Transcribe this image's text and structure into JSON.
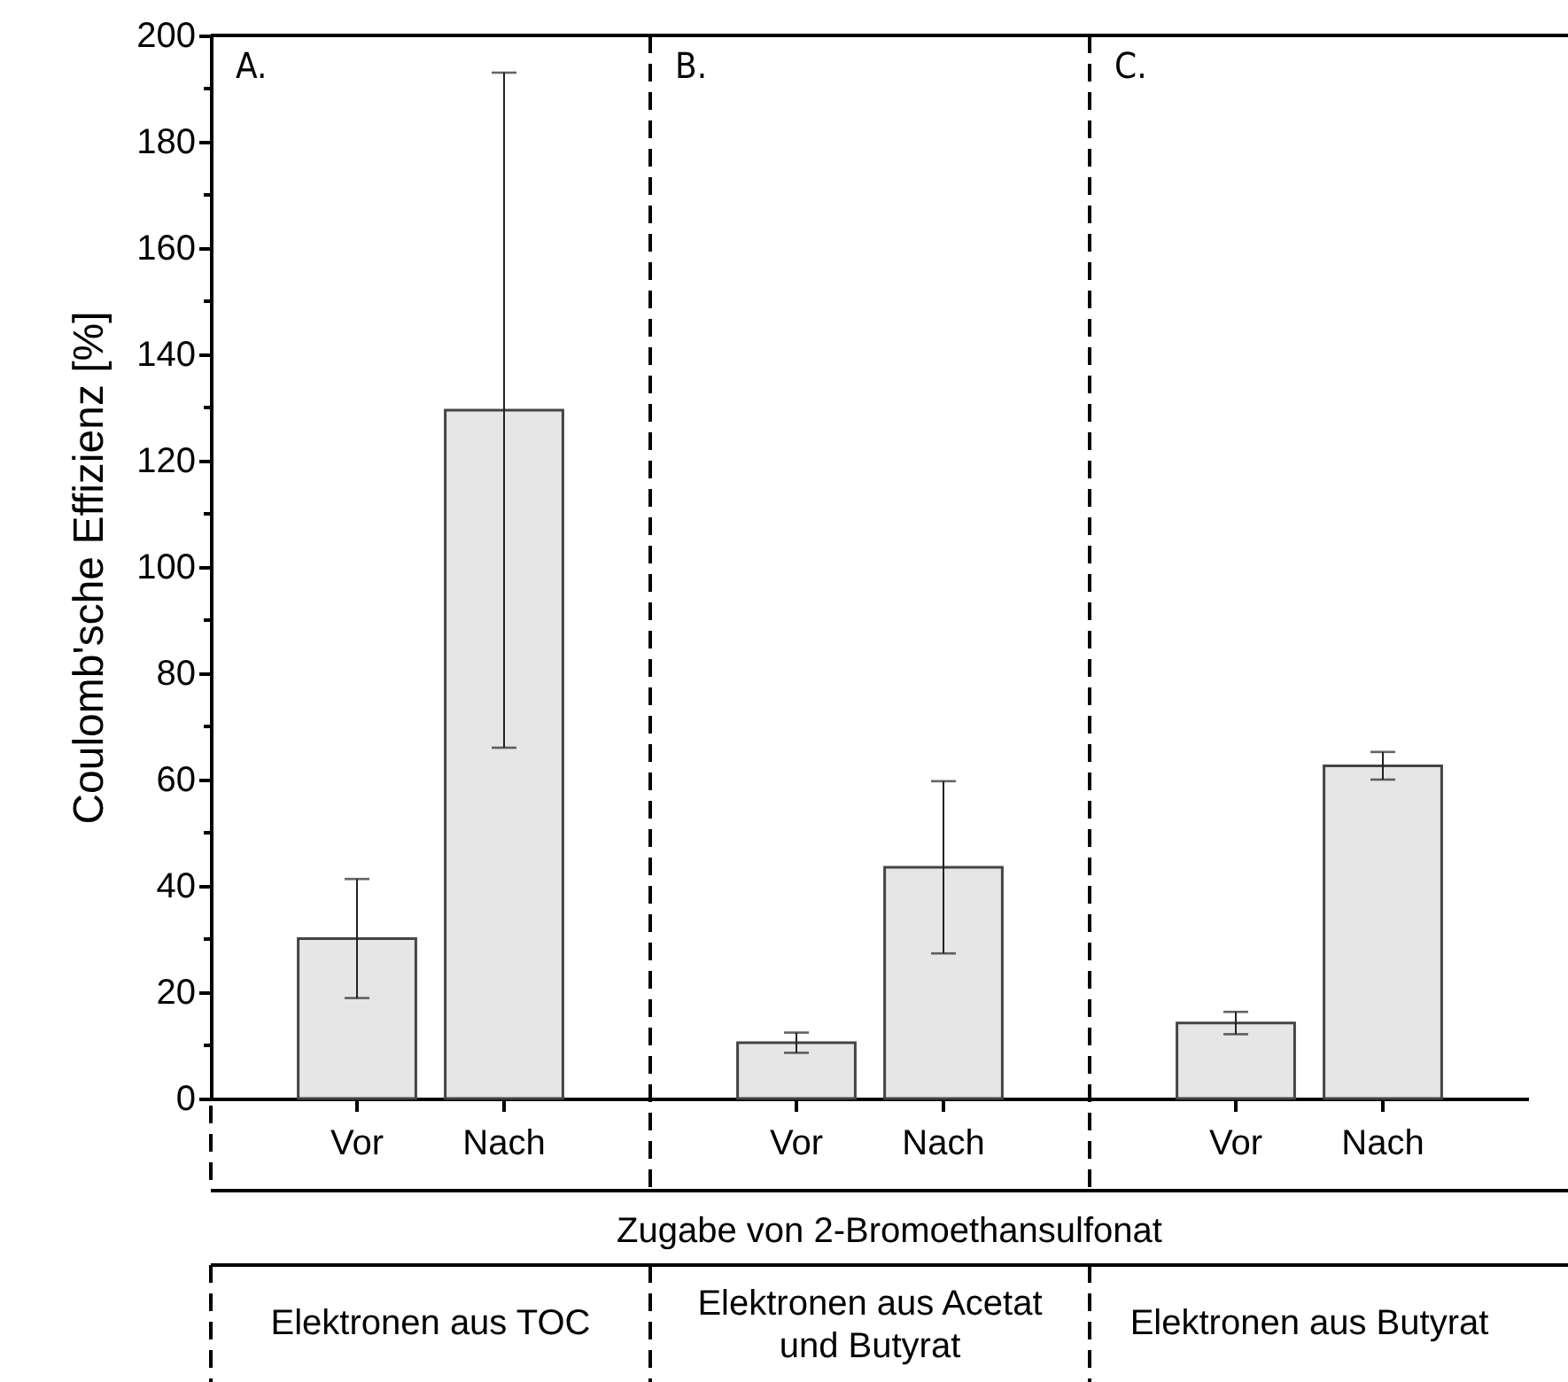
{
  "chart_data": [
    {
      "type": "bar",
      "categories": [
        "Vor",
        "Nach"
      ],
      "values": [
        30.1,
        129.5
      ],
      "errors": [
        11.2,
        63.5
      ],
      "color": "#e6e6e6",
      "ylabel": "Coulomb'sche Effizienz [%]",
      "xlabel": "Elektronen aus TOC",
      "annotations": [
        "A."
      ],
      "ylim": [
        0,
        200
      ],
      "yticks": [
        0,
        {
          "value": 10,
          "label": null
        },
        20,
        {
          "value": 30,
          "label": null
        },
        40,
        {
          "value": 50,
          "label": null
        },
        60,
        {
          "value": 70,
          "label": null
        },
        80,
        {
          "value": 90,
          "label": null
        },
        100,
        {
          "value": 110,
          "label": null
        },
        120,
        {
          "value": 130,
          "label": null
        },
        140,
        {
          "value": 150,
          "label": null
        },
        160,
        {
          "value": 170,
          "label": null
        },
        180,
        {
          "value": 190,
          "label": null
        },
        200
      ],
      "grid": false
    },
    {
      "type": "bar",
      "categories": [
        "Vor",
        "Nach"
      ],
      "values": [
        10.5,
        43.5
      ],
      "errors": [
        1.9,
        16.2
      ],
      "color": "#e6e6e6",
      "xlabel": "Elektronen aus Acetat und Butyrat",
      "annotations": [
        "B.",
        "Zugabe von 2-Bromoethansulfonat"
      ],
      "ylim": [
        0,
        200
      ],
      "yticks": [
        0,
        20,
        40,
        60,
        80,
        100,
        120,
        140,
        160,
        180,
        200
      ],
      "tick_labels": "x",
      "grid": false
    },
    {
      "type": "bar",
      "categories": [
        "Vor",
        "Nach"
      ],
      "values": [
        14.2,
        62.6
      ],
      "errors": [
        2.1,
        2.6
      ],
      "color": "#e6e6e6",
      "xlabel": "Elektronen aus Butyrat",
      "annotations": [
        "C."
      ],
      "ylim": [
        0,
        200
      ],
      "yticks": [
        0,
        20,
        40,
        60,
        80,
        100,
        120,
        140,
        160,
        180,
        200
      ],
      "tick_labels": "x",
      "grid": false
    }
  ]
}
